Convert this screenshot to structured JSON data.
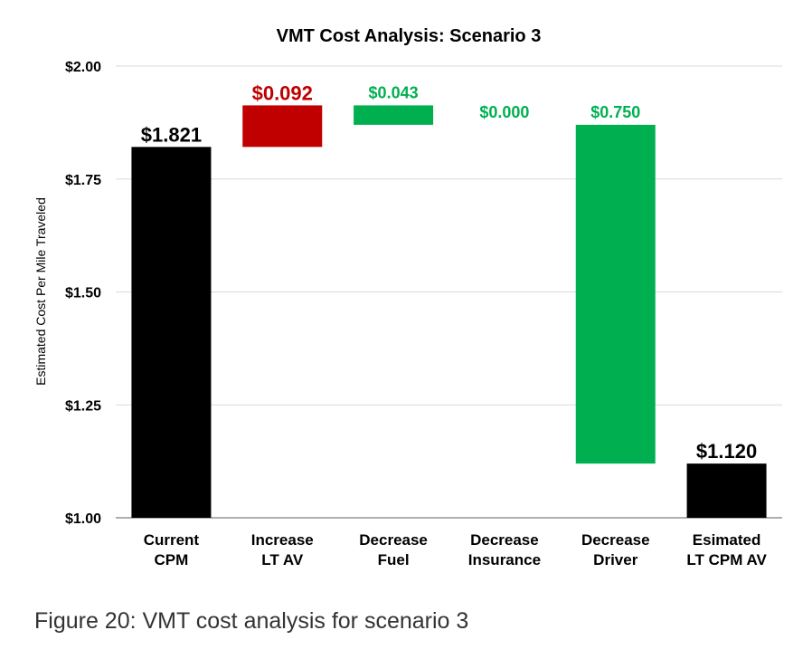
{
  "chart_data": {
    "type": "bar",
    "subtype": "waterfall",
    "title": "VMT Cost Analysis: Scenario 3",
    "ylabel": "Estimated Cost Per Mile Traveled",
    "xlabel": "",
    "ylim": [
      1.0,
      2.0
    ],
    "yticks": [
      "$1.00",
      "$1.25",
      "$1.50",
      "$1.75",
      "$2.00"
    ],
    "ytick_values": [
      1.0,
      1.25,
      1.5,
      1.75,
      2.0
    ],
    "grid": true,
    "categories": [
      [
        "Current",
        "CPM"
      ],
      [
        "Increase",
        "LT AV"
      ],
      [
        "Decrease",
        "Fuel"
      ],
      [
        "Decrease",
        "Insurance"
      ],
      [
        "Decrease",
        "Driver"
      ],
      [
        "Esimated",
        "LT CPM AV"
      ]
    ],
    "bars": [
      {
        "base": 1.0,
        "top": 1.821,
        "label": "$1.821",
        "color": "#000000",
        "label_color": "#000000"
      },
      {
        "base": 1.821,
        "top": 1.913,
        "label": "$0.092",
        "color": "#c00000",
        "label_color": "#c00000"
      },
      {
        "base": 1.87,
        "top": 1.913,
        "label": "$0.043",
        "color": "#00b050",
        "label_color": "#00b050"
      },
      {
        "base": 1.87,
        "top": 1.87,
        "label": "$0.000",
        "color": "#00b050",
        "label_color": "#00b050"
      },
      {
        "base": 1.12,
        "top": 1.87,
        "label": "$0.750",
        "color": "#00b050",
        "label_color": "#00b050"
      },
      {
        "base": 1.0,
        "top": 1.12,
        "label": "$1.120",
        "color": "#000000",
        "label_color": "#000000"
      }
    ]
  },
  "caption": "Figure 20: VMT cost analysis for scenario 3"
}
